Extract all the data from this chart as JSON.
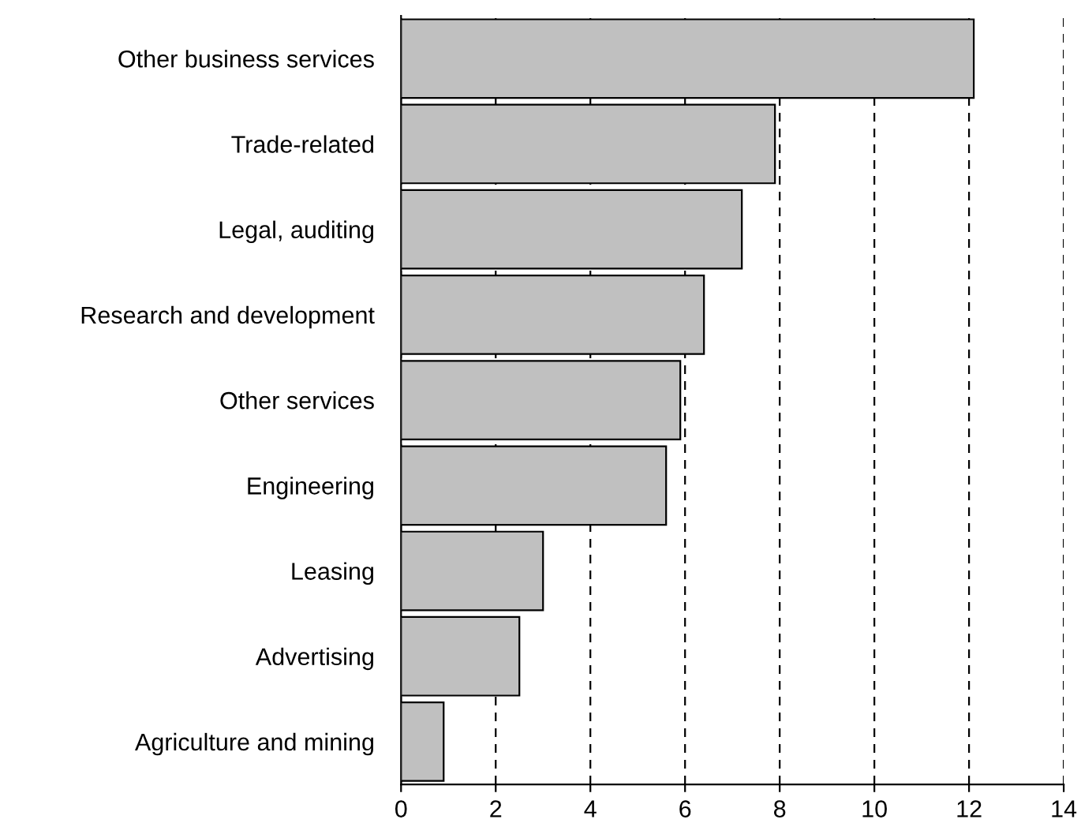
{
  "chart_data": {
    "type": "bar",
    "orientation": "horizontal",
    "categories": [
      "Other business services",
      "Trade-related",
      "Legal, auditing",
      "Research and development",
      "Other services",
      "Engineering",
      "Leasing",
      "Advertising",
      "Agriculture and mining"
    ],
    "values": [
      12.1,
      7.9,
      7.2,
      6.4,
      5.9,
      5.6,
      3.0,
      2.5,
      0.9
    ],
    "color": "#c0c0c0",
    "xlim": [
      0,
      14
    ],
    "xticks": [
      0,
      2,
      4,
      6,
      8,
      10,
      12,
      14
    ],
    "grid": "x",
    "line_style": "dashed"
  }
}
